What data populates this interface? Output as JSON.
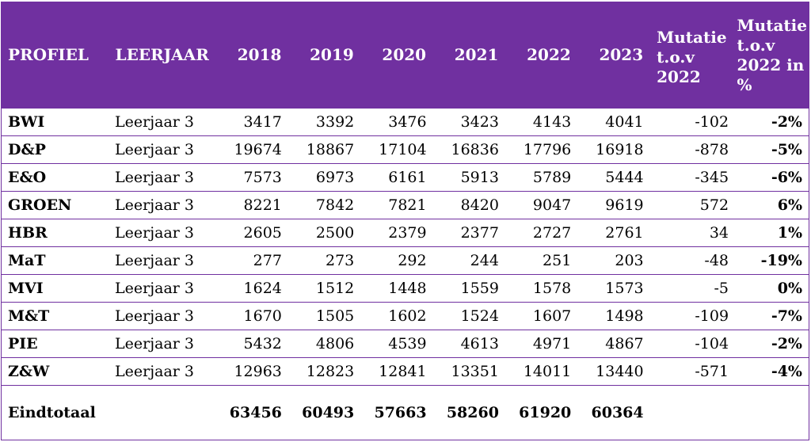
{
  "headers": {
    "profiel": "PROFIEL",
    "leerjaar": "LEERJAAR",
    "years": [
      "2018",
      "2019",
      "2020",
      "2021",
      "2022",
      "2023"
    ],
    "mutatie": "Mutatie t.o.v 2022",
    "mutatie_pct": "Mutatie t.o.v 2022 in %"
  },
  "rows": [
    {
      "profiel": "BWI",
      "leerjaar": "Leerjaar 3",
      "values": [
        "3417",
        "3392",
        "3476",
        "3423",
        "4143",
        "4041"
      ],
      "mutatie": "-102",
      "pct": "-2%"
    },
    {
      "profiel": "D&P",
      "leerjaar": "Leerjaar 3",
      "values": [
        "19674",
        "18867",
        "17104",
        "16836",
        "17796",
        "16918"
      ],
      "mutatie": "-878",
      "pct": "-5%"
    },
    {
      "profiel": "E&O",
      "leerjaar": "Leerjaar 3",
      "values": [
        "7573",
        "6973",
        "6161",
        "5913",
        "5789",
        "5444"
      ],
      "mutatie": "-345",
      "pct": "-6%"
    },
    {
      "profiel": "GROEN",
      "leerjaar": "Leerjaar 3",
      "values": [
        "8221",
        "7842",
        "7821",
        "8420",
        "9047",
        "9619"
      ],
      "mutatie": "572",
      "pct": "6%"
    },
    {
      "profiel": "HBR",
      "leerjaar": "Leerjaar 3",
      "values": [
        "2605",
        "2500",
        "2379",
        "2377",
        "2727",
        "2761"
      ],
      "mutatie": "34",
      "pct": "1%"
    },
    {
      "profiel": "MaT",
      "leerjaar": "Leerjaar 3",
      "values": [
        "277",
        "273",
        "292",
        "244",
        "251",
        "203"
      ],
      "mutatie": "-48",
      "pct": "-19%"
    },
    {
      "profiel": "MVI",
      "leerjaar": "Leerjaar 3",
      "values": [
        "1624",
        "1512",
        "1448",
        "1559",
        "1578",
        "1573"
      ],
      "mutatie": "-5",
      "pct": "0%"
    },
    {
      "profiel": "M&T",
      "leerjaar": "Leerjaar 3",
      "values": [
        "1670",
        "1505",
        "1602",
        "1524",
        "1607",
        "1498"
      ],
      "mutatie": "-109",
      "pct": "-7%"
    },
    {
      "profiel": "PIE",
      "leerjaar": "Leerjaar 3",
      "values": [
        "5432",
        "4806",
        "4539",
        "4613",
        "4971",
        "4867"
      ],
      "mutatie": "-104",
      "pct": "-2%"
    },
    {
      "profiel": "Z&W",
      "leerjaar": "Leerjaar 3",
      "values": [
        "12963",
        "12823",
        "12841",
        "13351",
        "14011",
        "13440"
      ],
      "mutatie": "-571",
      "pct": "-4%"
    }
  ],
  "total": {
    "label": "Eindtotaal",
    "values": [
      "63456",
      "60493",
      "57663",
      "58260",
      "61920",
      "60364"
    ]
  },
  "colors": {
    "header_bg": "#7030a0",
    "header_text": "#ffffff",
    "border": "#7030a0"
  }
}
